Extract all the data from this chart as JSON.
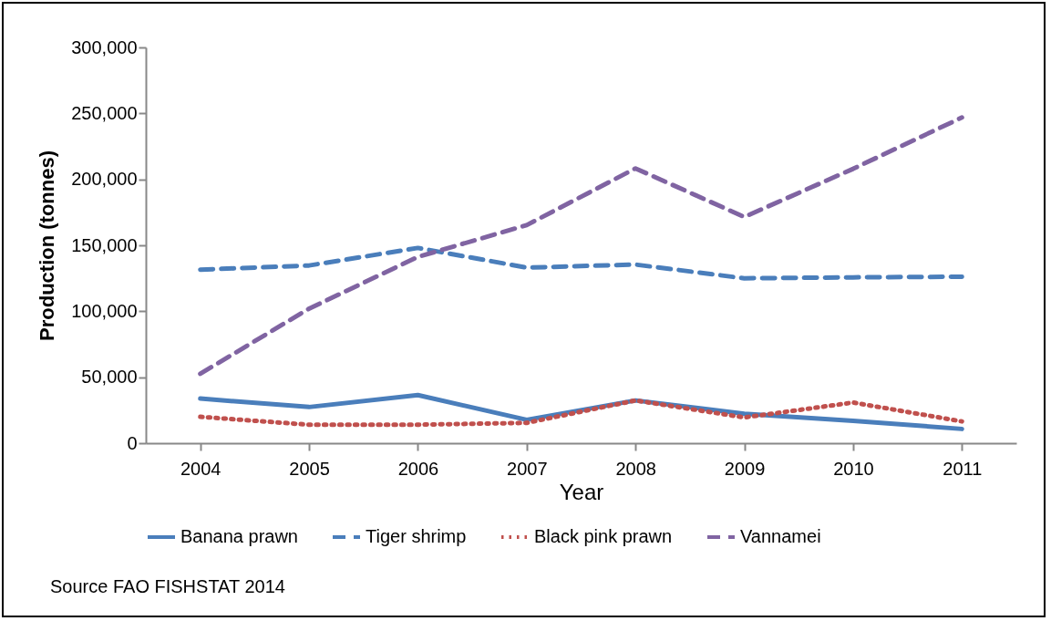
{
  "chart_data": {
    "type": "line",
    "xlabel": "Year",
    "ylabel": "Production (tonnes)",
    "categories": [
      "2004",
      "2005",
      "2006",
      "2007",
      "2008",
      "2009",
      "2010",
      "2011"
    ],
    "series": [
      {
        "name": "Banana prawn",
        "color": "#4a7ebb",
        "line_style": "solid",
        "values": [
          33800,
          27400,
          36500,
          17700,
          32400,
          22300,
          17000,
          10800
        ]
      },
      {
        "name": "Tiger shrimp",
        "color": "#4a7ebb",
        "line_style": "dashed",
        "values": [
          131500,
          134700,
          148000,
          133100,
          135400,
          125000,
          125700,
          126200
        ]
      },
      {
        "name": "Black pink prawn",
        "color": "#c0504d",
        "line_style": "dotted",
        "values": [
          20000,
          14000,
          14000,
          15400,
          32400,
          19500,
          30800,
          16500
        ]
      },
      {
        "name": "Vannamei",
        "color": "#8064a2",
        "line_style": "dashed",
        "values": [
          52600,
          102000,
          141200,
          165300,
          208300,
          171500,
          208000,
          246900
        ]
      }
    ],
    "ylim": [
      0,
      300000
    ],
    "yticks": [
      0,
      {
        "value": 50000,
        "label": "50,000"
      },
      {
        "value": 100000,
        "label": "100,000"
      },
      {
        "value": 150000,
        "label": "150,000"
      },
      {
        "value": 200000,
        "label": "200,000"
      },
      {
        "value": 250000,
        "label": "250,000"
      },
      {
        "value": 300000,
        "label": "300,000"
      }
    ],
    "grid": false,
    "legend": "bottom",
    "marker": "none",
    "annotations": [
      "Source FAO FISHSTAT 2014"
    ]
  }
}
